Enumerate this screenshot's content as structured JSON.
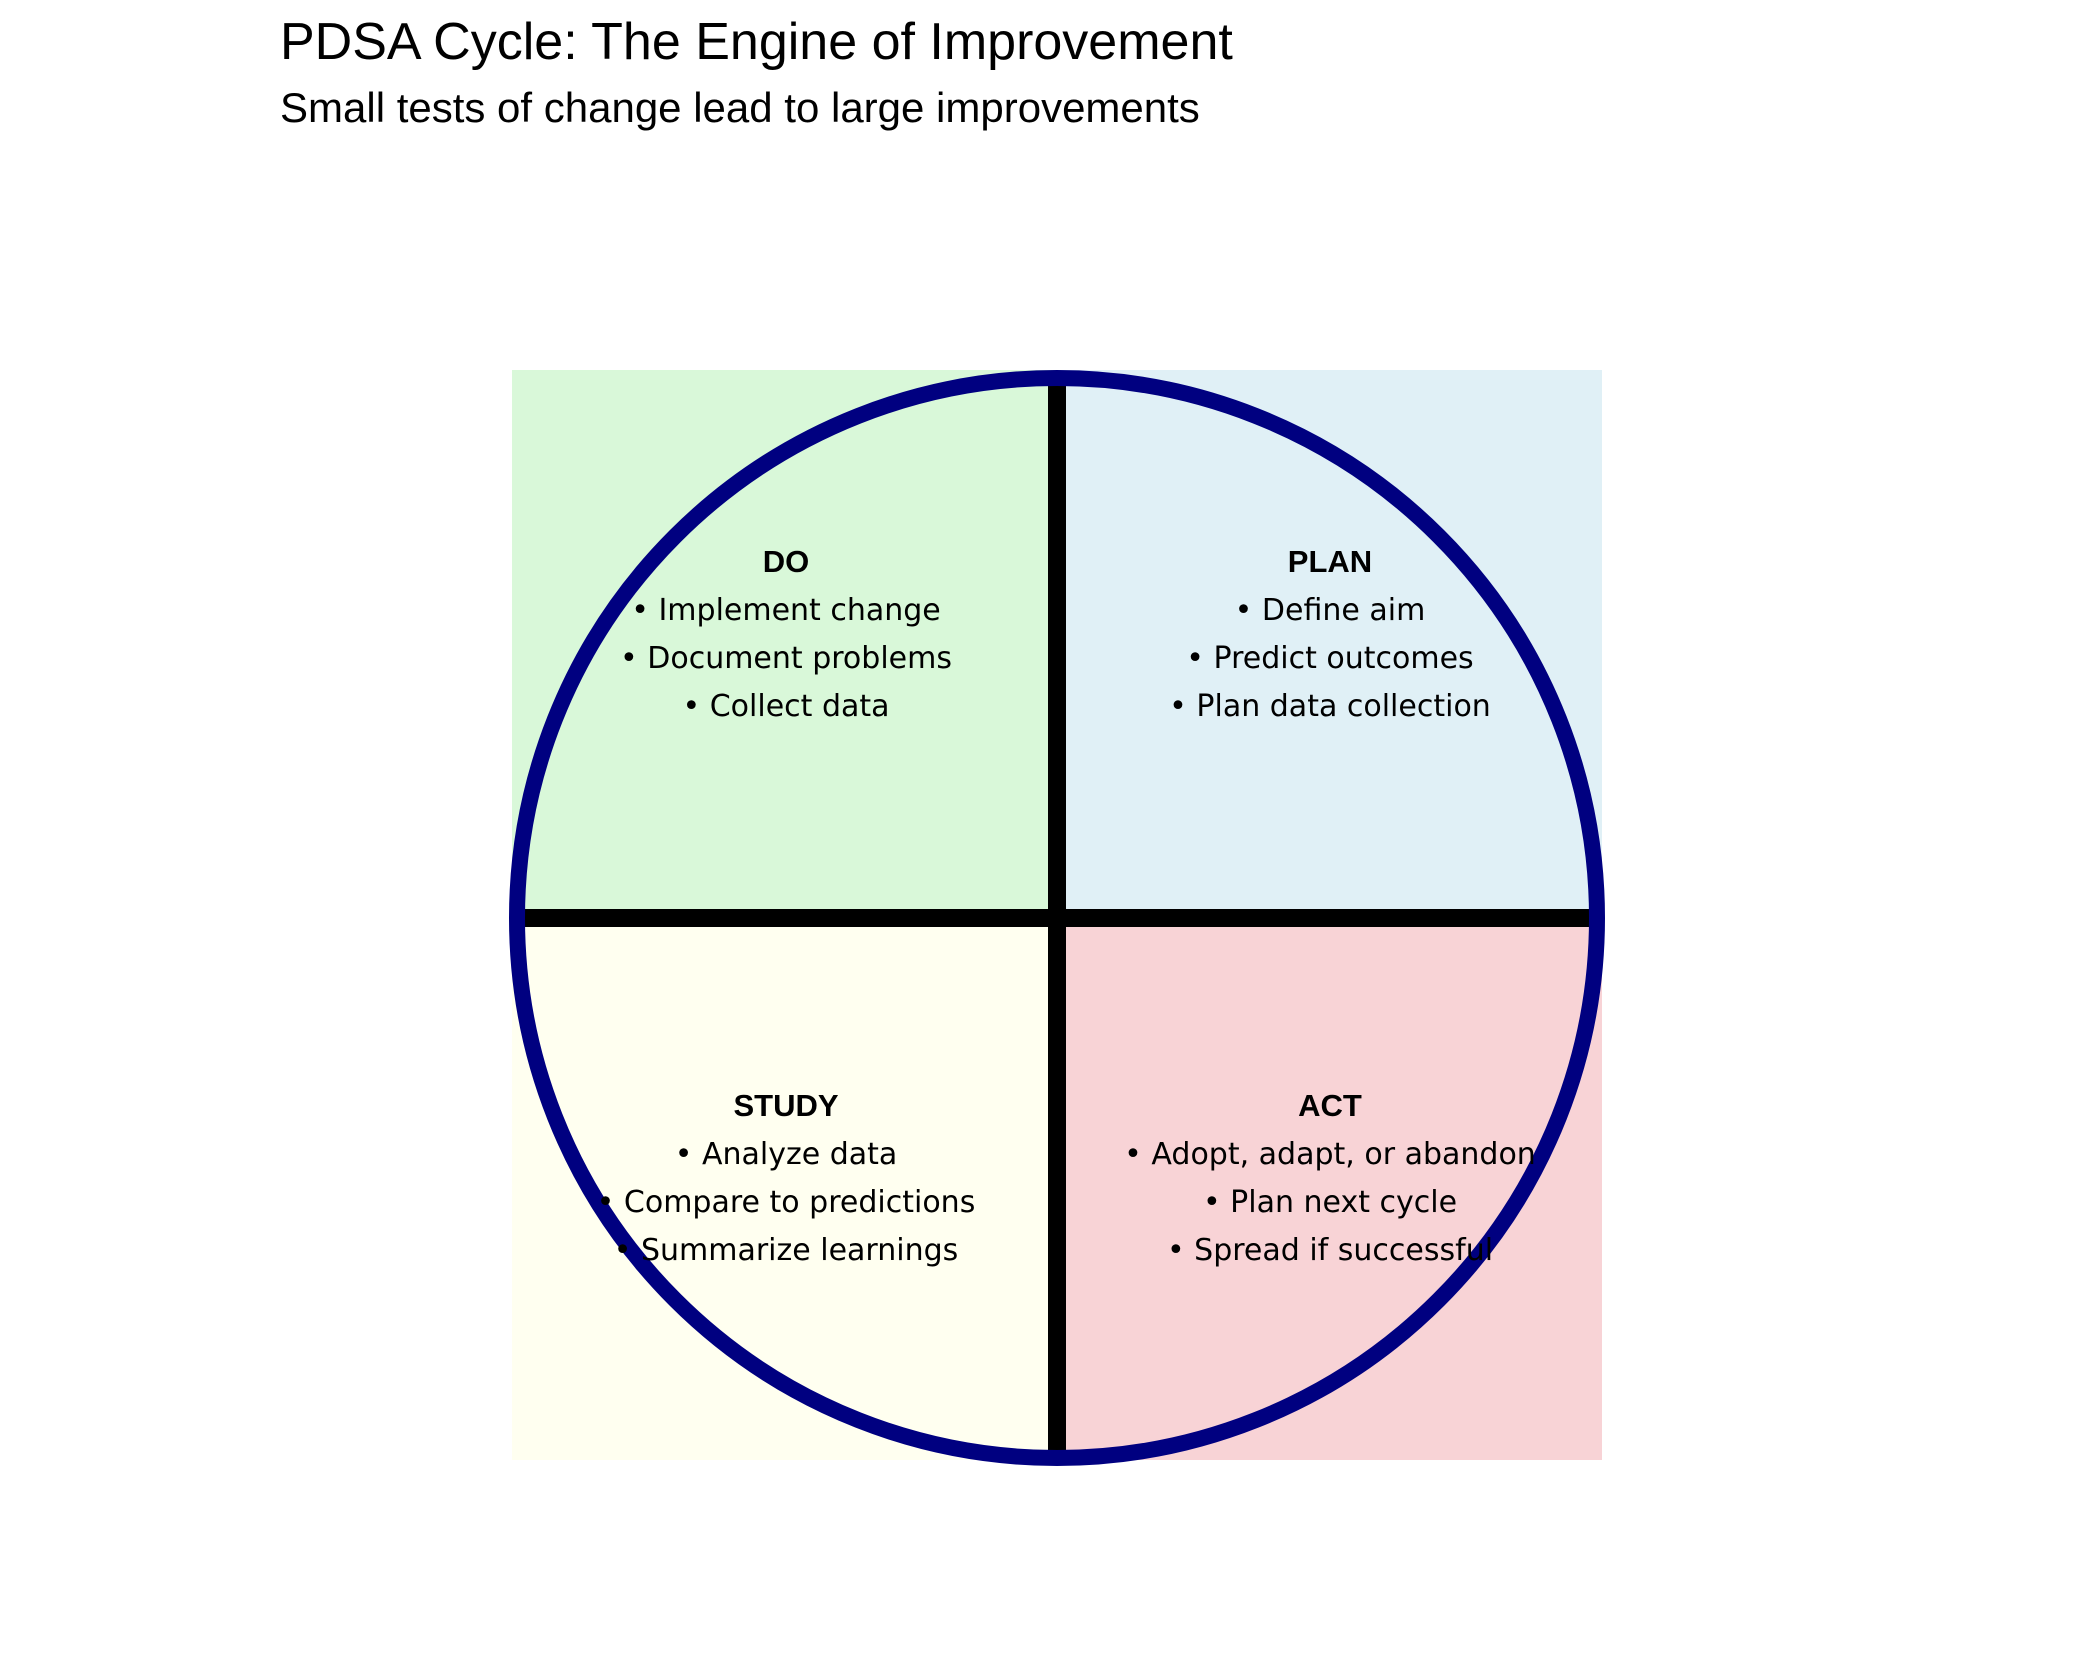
{
  "title": "PDSA Cycle: The Engine of Improvement",
  "subtitle": "Small tests of change lead to large improvements",
  "colors": {
    "plan": "#e0f0f6",
    "do": "#d9f8d9",
    "study": "#fffff0",
    "act": "#f8d3d6",
    "circle_outline": "#000080",
    "dividers": "#000000",
    "text": "#000000"
  },
  "quadrants": [
    {
      "id": "plan",
      "heading": "PLAN",
      "bullets": [
        "• Define aim",
        "• Predict outcomes",
        "• Plan data collection"
      ]
    },
    {
      "id": "do",
      "heading": "DO",
      "bullets": [
        "• Implement change",
        "• Document problems",
        "• Collect data"
      ]
    },
    {
      "id": "study",
      "heading": "STUDY",
      "bullets": [
        "• Analyze data",
        "• Compare to predictions",
        "• Summarize learnings"
      ]
    },
    {
      "id": "act",
      "heading": "ACT",
      "bullets": [
        "• Adopt, adapt, or abandon",
        "• Plan next cycle",
        "• Spread if successful"
      ]
    }
  ]
}
